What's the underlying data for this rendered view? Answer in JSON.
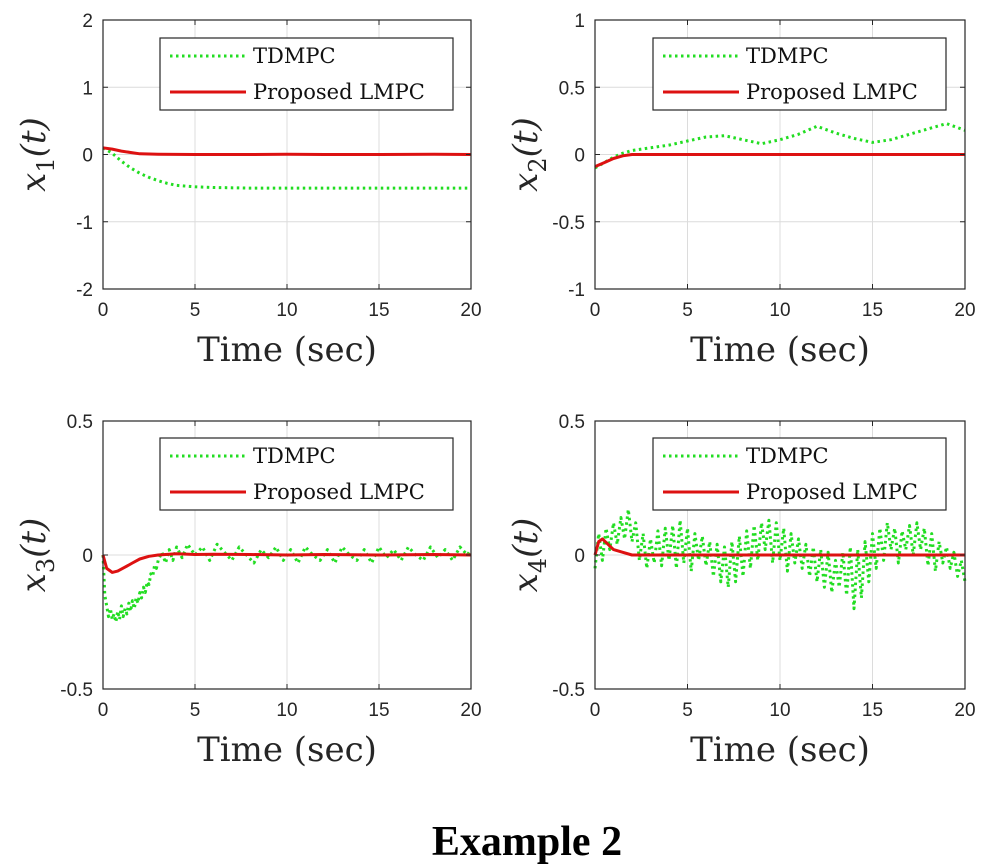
{
  "caption": "Example 2",
  "chart_data": [
    {
      "type": "line",
      "xlabel": "Time (sec)",
      "ylabel": {
        "var": "x",
        "sub": "1",
        "arg": "(t)"
      },
      "xlim": [
        0,
        20
      ],
      "ylim": [
        -2,
        2
      ],
      "xticks": [
        0,
        5,
        10,
        15,
        20
      ],
      "yticks": [
        -2,
        -1,
        0,
        1,
        2
      ],
      "ytick_labels": [
        "-2",
        "-1",
        "0",
        "1",
        "2"
      ],
      "grid": true,
      "legend_position": "top-right",
      "series": [
        {
          "name": "TDMPC",
          "color": "#22dd22",
          "style": "dotted",
          "x": [
            0,
            0.5,
            1,
            1.5,
            2,
            2.5,
            3,
            3.5,
            4,
            5,
            6,
            8,
            10,
            12,
            14,
            16,
            18,
            20
          ],
          "y": [
            0.1,
            0.02,
            -0.1,
            -0.2,
            -0.28,
            -0.34,
            -0.39,
            -0.43,
            -0.46,
            -0.48,
            -0.49,
            -0.5,
            -0.5,
            -0.5,
            -0.5,
            -0.5,
            -0.5,
            -0.5
          ]
        },
        {
          "name": "Proposed LMPC",
          "color": "#dd1111",
          "style": "solid",
          "x": [
            0,
            0.5,
            1,
            1.5,
            2,
            3,
            5,
            8,
            10,
            12,
            15,
            18,
            20
          ],
          "y": [
            0.1,
            0.08,
            0.05,
            0.03,
            0.01,
            0.005,
            0,
            0,
            0.005,
            0,
            0,
            0.005,
            0
          ]
        }
      ]
    },
    {
      "type": "line",
      "xlabel": "Time (sec)",
      "ylabel": {
        "var": "x",
        "sub": "2",
        "arg": "(t)"
      },
      "xlim": [
        0,
        20
      ],
      "ylim": [
        -1,
        1
      ],
      "xticks": [
        0,
        5,
        10,
        15,
        20
      ],
      "yticks": [
        -1,
        -0.5,
        0,
        0.5,
        1
      ],
      "ytick_labels": [
        "-1",
        "-0.5",
        "0",
        "0.5",
        "1"
      ],
      "grid": true,
      "legend_position": "top-right",
      "series": [
        {
          "name": "TDMPC",
          "color": "#22dd22",
          "style": "dotted",
          "x": [
            0,
            0.5,
            1,
            1.5,
            2,
            3,
            4,
            5,
            6,
            7,
            8,
            9,
            10,
            11,
            12,
            13,
            14,
            15,
            16,
            17,
            18,
            19,
            20
          ],
          "y": [
            -0.1,
            -0.06,
            -0.02,
            0.01,
            0.03,
            0.05,
            0.07,
            0.1,
            0.13,
            0.14,
            0.11,
            0.08,
            0.11,
            0.15,
            0.21,
            0.16,
            0.12,
            0.09,
            0.11,
            0.15,
            0.19,
            0.23,
            0.18
          ]
        },
        {
          "name": "Proposed LMPC",
          "color": "#dd1111",
          "style": "solid",
          "x": [
            0,
            0.5,
            1,
            1.5,
            2,
            3,
            5,
            10,
            15,
            20
          ],
          "y": [
            -0.09,
            -0.06,
            -0.03,
            -0.01,
            0,
            0,
            0,
            0,
            0,
            0
          ]
        }
      ]
    },
    {
      "type": "line",
      "xlabel": "Time (sec)",
      "ylabel": {
        "var": "x",
        "sub": "3",
        "arg": "(t)"
      },
      "xlim": [
        0,
        20
      ],
      "ylim": [
        -0.5,
        0.5
      ],
      "xticks": [
        0,
        5,
        10,
        15,
        20
      ],
      "yticks": [
        -0.5,
        0,
        0.5
      ],
      "ytick_labels": [
        "-0.5",
        "0",
        "0.5"
      ],
      "grid": true,
      "legend_position": "top-right",
      "series": [
        {
          "name": "TDMPC",
          "color": "#22dd22",
          "style": "dotted",
          "x": [
            0,
            0.1,
            0.2,
            0.3,
            0.4,
            0.5,
            0.6,
            0.7,
            0.8,
            0.9,
            1.0,
            1.1,
            1.2,
            1.3,
            1.4,
            1.5,
            1.6,
            1.7,
            1.8,
            1.9,
            2.0,
            2.1,
            2.2,
            2.3,
            2.4,
            2.5,
            2.6,
            2.7,
            2.8,
            2.9,
            3.0,
            3.2,
            3.4,
            3.6,
            3.8,
            4.0,
            4.3,
            4.6,
            5.0,
            5.4,
            5.8,
            6.2,
            6.6,
            7.0,
            7.4,
            7.8,
            8.2,
            8.6,
            9.0,
            9.4,
            9.8,
            10.2,
            10.6,
            11.0,
            11.4,
            11.8,
            12.2,
            12.6,
            13.0,
            13.4,
            13.8,
            14.2,
            14.6,
            15.0,
            15.4,
            15.8,
            16.2,
            16.6,
            17.0,
            17.4,
            17.8,
            18.2,
            18.6,
            19.0,
            19.4,
            19.8,
            20.0
          ],
          "y": [
            0,
            -0.15,
            -0.19,
            -0.23,
            -0.2,
            -0.24,
            -0.22,
            -0.25,
            -0.21,
            -0.24,
            -0.19,
            -0.23,
            -0.2,
            -0.22,
            -0.18,
            -0.21,
            -0.17,
            -0.2,
            -0.16,
            -0.18,
            -0.14,
            -0.16,
            -0.12,
            -0.14,
            -0.1,
            -0.11,
            -0.07,
            -0.08,
            -0.04,
            -0.05,
            -0.02,
            0.01,
            -0.03,
            0.02,
            -0.02,
            0.03,
            -0.01,
            0.04,
            0,
            0.03,
            -0.02,
            0.04,
            0.01,
            -0.02,
            0.03,
            0,
            -0.03,
            0.02,
            -0.01,
            0.03,
            -0.02,
            0.02,
            -0.03,
            0.03,
            0,
            -0.02,
            0.02,
            -0.03,
            0.03,
            0,
            -0.02,
            0.02,
            -0.03,
            0.03,
            -0.01,
            0.02,
            -0.02,
            0.03,
            0,
            -0.02,
            0.03,
            -0.01,
            0.02,
            -0.02,
            0.03,
            0,
            0.02
          ]
        },
        {
          "name": "Proposed LMPC",
          "color": "#dd1111",
          "style": "solid",
          "x": [
            0,
            0.2,
            0.5,
            0.8,
            1.2,
            1.6,
            2.0,
            2.5,
            3.0,
            4.0,
            5.0,
            6.0,
            8.0,
            10.0,
            12.0,
            15.0,
            18.0,
            20.0
          ],
          "y": [
            0,
            -0.05,
            -0.065,
            -0.06,
            -0.045,
            -0.03,
            -0.015,
            -0.005,
            0,
            0.005,
            0.002,
            0.003,
            0.002,
            0,
            0.002,
            0,
            0.002,
            0
          ]
        }
      ]
    },
    {
      "type": "line",
      "xlabel": "Time (sec)",
      "ylabel": {
        "var": "x",
        "sub": "4",
        "arg": "(t)"
      },
      "xlim": [
        0,
        20
      ],
      "ylim": [
        -0.5,
        0.5
      ],
      "xticks": [
        0,
        5,
        10,
        15,
        20
      ],
      "yticks": [
        -0.5,
        0,
        0.5
      ],
      "ytick_labels": [
        "-0.5",
        "0",
        "0.5"
      ],
      "grid": true,
      "legend_position": "top-right",
      "series": [
        {
          "name": "TDMPC",
          "color": "#22dd22",
          "style": "dotted",
          "x": [
            0,
            0.2,
            0.4,
            0.6,
            0.8,
            1.0,
            1.2,
            1.4,
            1.6,
            1.8,
            2.0,
            2.2,
            2.4,
            2.6,
            2.8,
            3.0,
            3.2,
            3.4,
            3.6,
            3.8,
            4.0,
            4.2,
            4.4,
            4.6,
            4.8,
            5.0,
            5.2,
            5.4,
            5.6,
            5.8,
            6.0,
            6.2,
            6.4,
            6.6,
            6.8,
            7.0,
            7.2,
            7.4,
            7.6,
            7.8,
            8.0,
            8.2,
            8.4,
            8.6,
            8.8,
            9.0,
            9.2,
            9.4,
            9.6,
            9.8,
            10.0,
            10.2,
            10.4,
            10.6,
            10.8,
            11.0,
            11.2,
            11.4,
            11.6,
            11.8,
            12.0,
            12.2,
            12.4,
            12.6,
            12.8,
            13.0,
            13.2,
            13.4,
            13.6,
            13.8,
            14.0,
            14.2,
            14.4,
            14.6,
            14.8,
            15.0,
            15.2,
            15.4,
            15.6,
            15.8,
            16.0,
            16.2,
            16.4,
            16.6,
            16.8,
            17.0,
            17.2,
            17.4,
            17.6,
            17.8,
            18.0,
            18.2,
            18.4,
            18.6,
            18.8,
            19.0,
            19.2,
            19.4,
            19.6,
            19.8,
            20.0
          ],
          "y": [
            -0.05,
            0.08,
            -0.02,
            0.1,
            0.02,
            0.12,
            0.04,
            0.14,
            0.06,
            0.17,
            0.05,
            0.12,
            -0.02,
            0.08,
            -0.05,
            0.06,
            -0.03,
            0.09,
            -0.04,
            0.1,
            -0.02,
            0.11,
            -0.05,
            0.13,
            -0.03,
            0.1,
            -0.06,
            0.08,
            -0.02,
            0.07,
            -0.04,
            0.05,
            -0.08,
            0.04,
            -0.1,
            0.03,
            -0.12,
            0.05,
            -0.1,
            0.07,
            -0.08,
            0.09,
            -0.05,
            0.11,
            -0.02,
            0.12,
            0.02,
            0.13,
            -0.03,
            0.12,
            -0.02,
            0.1,
            -0.06,
            0.08,
            -0.03,
            0.06,
            -0.05,
            0.04,
            -0.08,
            0.03,
            -0.1,
            0.02,
            -0.12,
            0.01,
            -0.14,
            -0.02,
            -0.12,
            0.01,
            -0.15,
            0.03,
            -0.2,
            0.02,
            -0.16,
            0.05,
            -0.1,
            0.08,
            -0.05,
            0.1,
            -0.02,
            0.12,
            0.02,
            0.1,
            -0.03,
            0.09,
            0.02,
            0.11,
            0.0,
            0.12,
            0.02,
            0.1,
            -0.04,
            0.08,
            -0.06,
            0.05,
            -0.03,
            0.03,
            -0.05,
            0.01,
            -0.08,
            -0.02,
            -0.1
          ]
        },
        {
          "name": "Proposed LMPC",
          "color": "#dd1111",
          "style": "solid",
          "x": [
            0,
            0.2,
            0.4,
            0.7,
            1.0,
            1.5,
            2.0,
            3.0,
            5.0,
            8.0,
            10.0,
            12.0,
            15.0,
            18.0,
            20.0
          ],
          "y": [
            0,
            0.05,
            0.06,
            0.04,
            0.02,
            0.01,
            0,
            0,
            0,
            0,
            0,
            0,
            0,
            0,
            0
          ]
        }
      ]
    }
  ]
}
